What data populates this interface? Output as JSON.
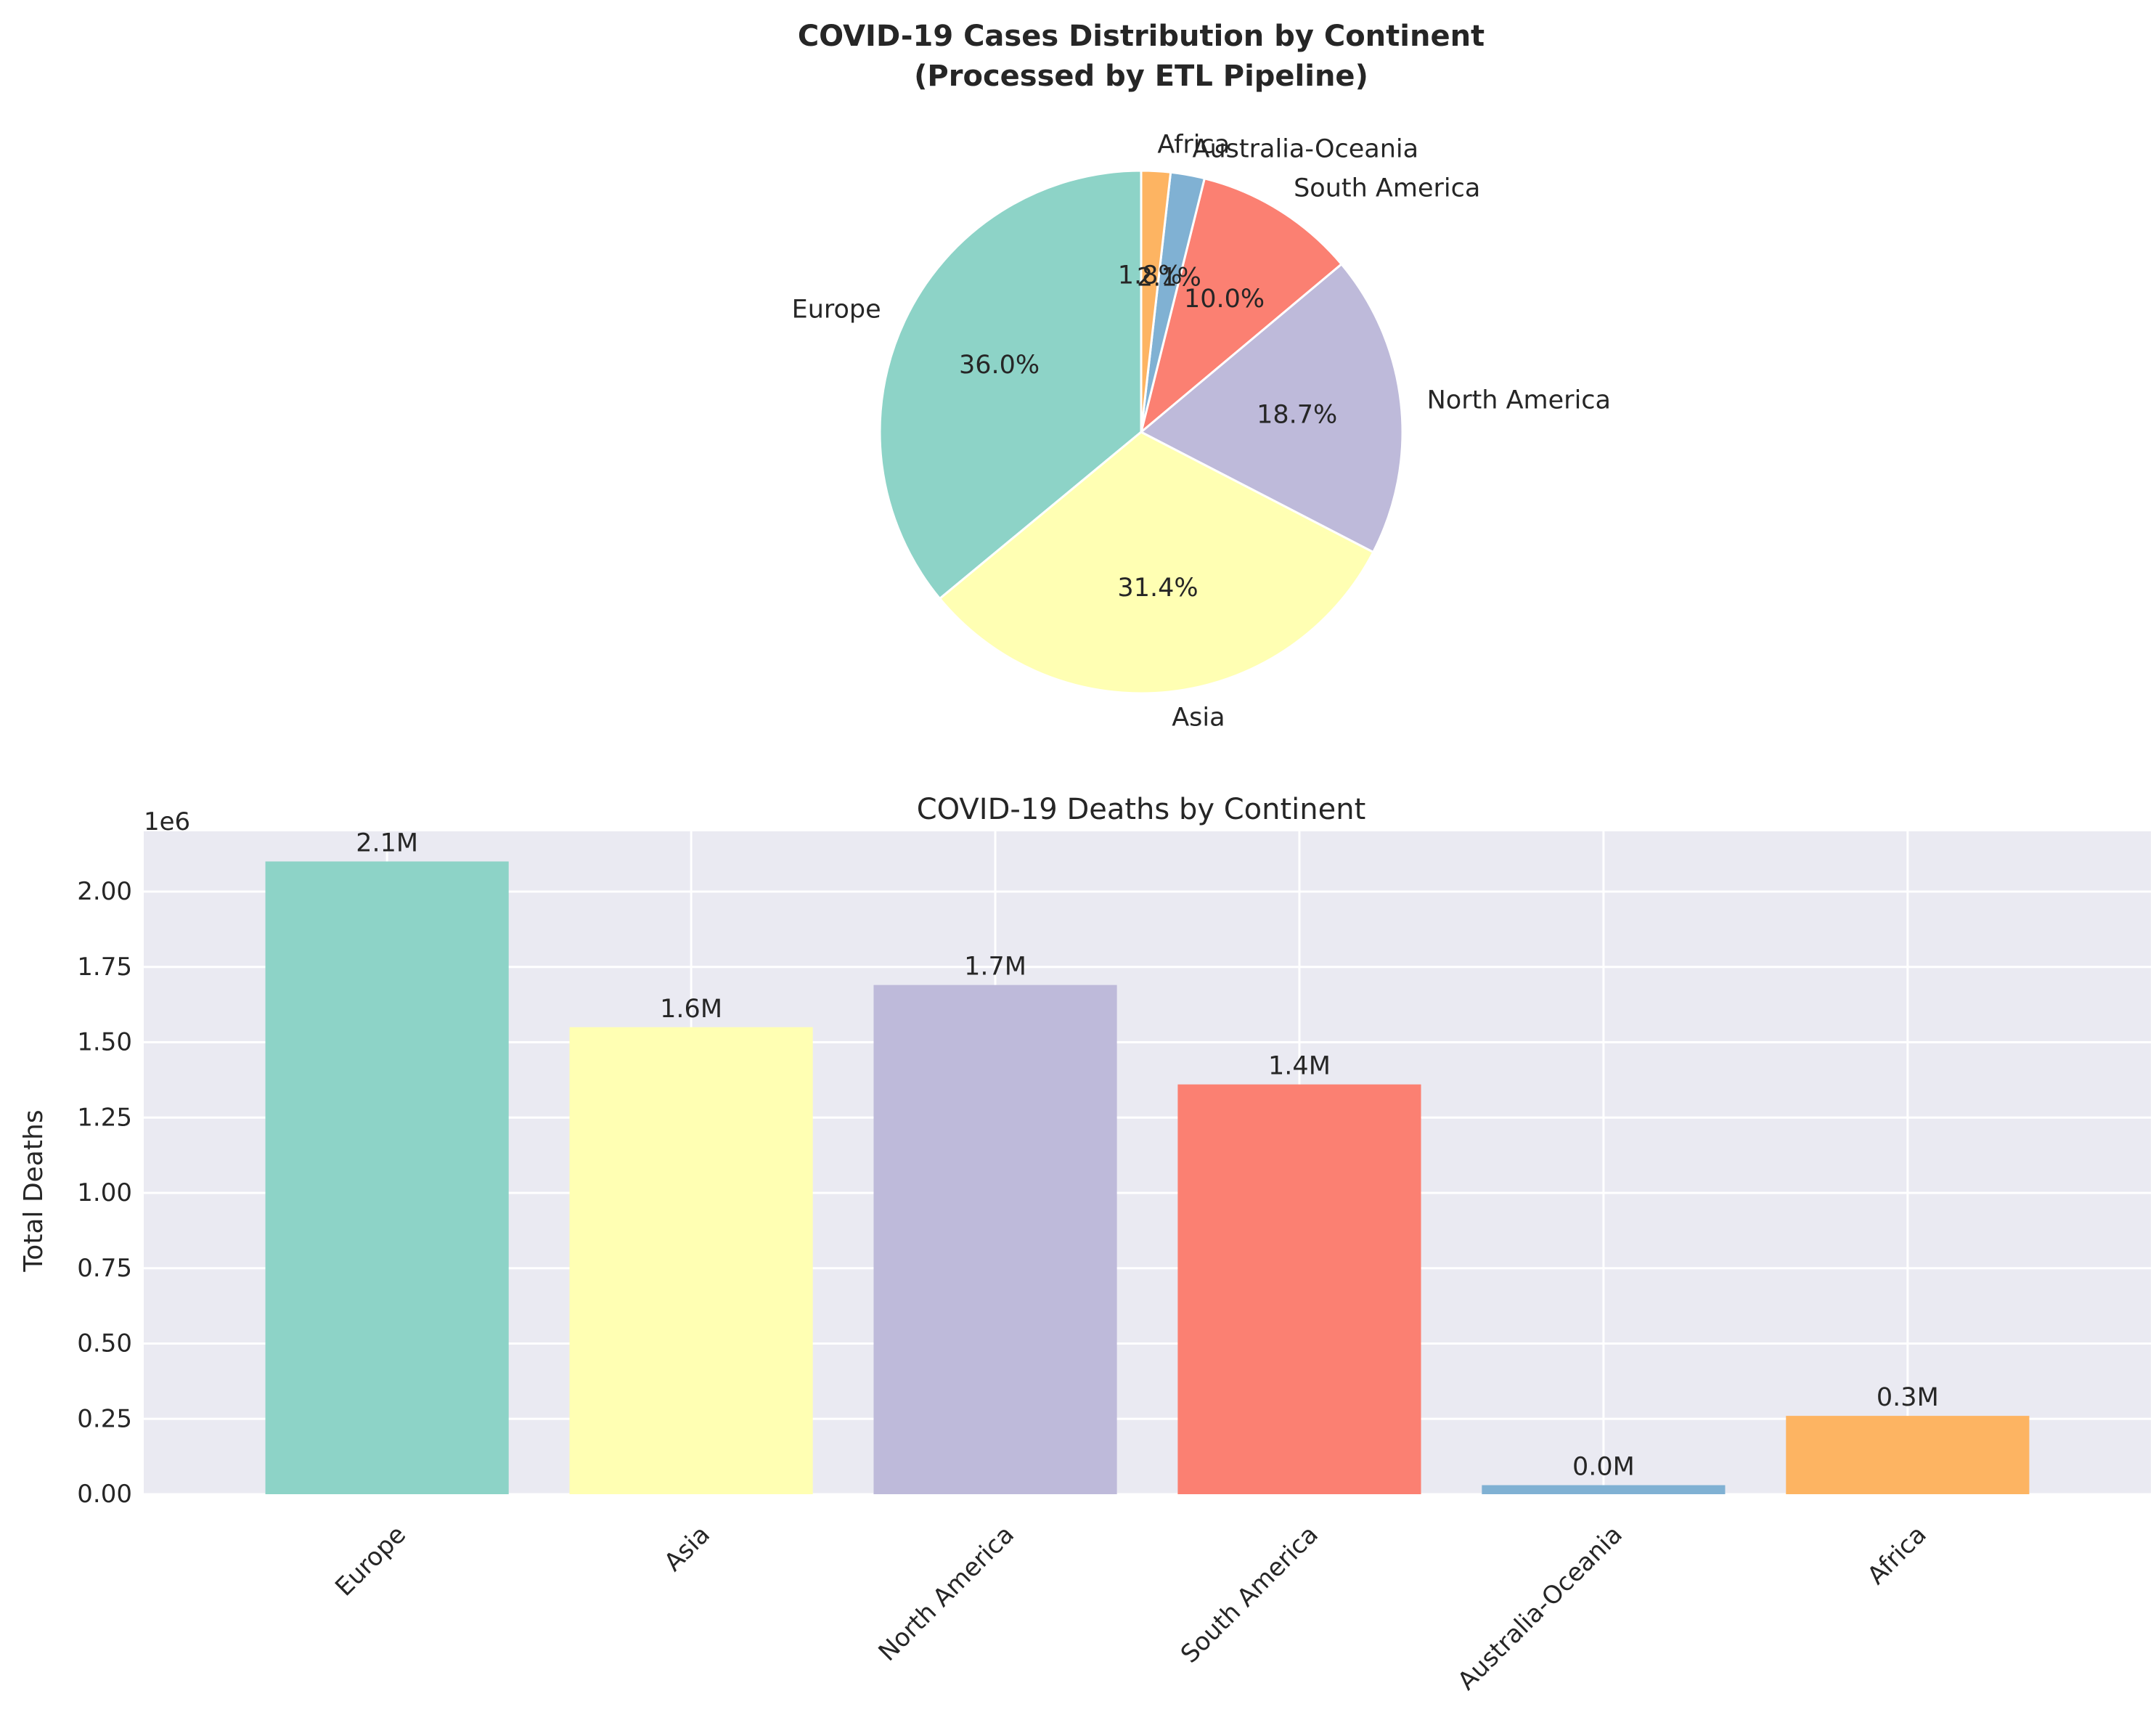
{
  "chart_data": [
    {
      "type": "pie",
      "title_line1": "COVID-19 Cases Distribution by Continent",
      "title_line2": "(Processed by ETL Pipeline)",
      "start_angle_deg": 90,
      "direction": "counterclockwise",
      "slices": [
        {
          "label": "Europe",
          "value": 36.0,
          "pct_label": "36.0%",
          "color": "#8dd3c7"
        },
        {
          "label": "Asia",
          "value": 31.4,
          "pct_label": "31.4%",
          "color": "#ffffb3"
        },
        {
          "label": "North America",
          "value": 18.7,
          "pct_label": "18.7%",
          "color": "#bebada"
        },
        {
          "label": "South America",
          "value": 10.0,
          "pct_label": "10.0%",
          "color": "#fb8072"
        },
        {
          "label": "Australia-Oceania",
          "value": 2.1,
          "pct_label": "2.1%",
          "color": "#80b1d3"
        },
        {
          "label": "Africa",
          "value": 1.8,
          "pct_label": "1.8%",
          "color": "#fdb462"
        }
      ]
    },
    {
      "type": "bar",
      "title": "COVID-19 Deaths by Continent",
      "xlabel": "",
      "ylabel": "Total Deaths",
      "offset_label": "1e6",
      "ylim": [
        0,
        2.2
      ],
      "y_ticks": [
        "0.00",
        "0.25",
        "0.50",
        "0.75",
        "1.00",
        "1.25",
        "1.50",
        "1.75",
        "2.00"
      ],
      "categories": [
        "Europe",
        "Asia",
        "North America",
        "South America",
        "Australia-Oceania",
        "Africa"
      ],
      "values": [
        2.1,
        1.55,
        1.69,
        1.36,
        0.03,
        0.26
      ],
      "value_labels": [
        "2.1M",
        "1.6M",
        "1.7M",
        "1.4M",
        "0.0M",
        "0.3M"
      ],
      "colors": [
        "#8dd3c7",
        "#ffffb3",
        "#bebada",
        "#fb8072",
        "#80b1d3",
        "#fdb462"
      ],
      "grid": true,
      "background": "#eaeaf2"
    }
  ]
}
